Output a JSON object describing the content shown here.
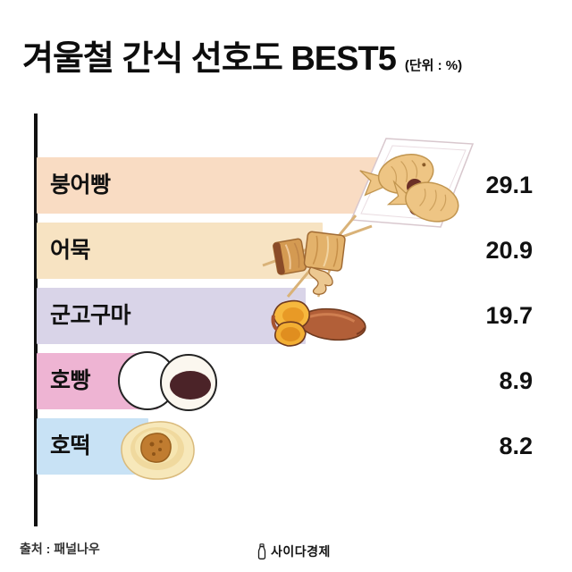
{
  "title": {
    "text": "겨울철 간식 선호도 BEST5",
    "unit": "(단위 : %)"
  },
  "chart_data": {
    "type": "bar",
    "orientation": "horizontal",
    "title": "겨울철 간식 선호도 BEST5",
    "unit": "%",
    "categories": [
      "붕어빵",
      "어묵",
      "군고구마",
      "호빵",
      "호떡"
    ],
    "values": [
      29.1,
      20.9,
      19.7,
      8.9,
      8.2
    ],
    "bar_colors": [
      "#f9dcc3",
      "#f7e3c2",
      "#d9d4e8",
      "#eeb4d3",
      "#c8e2f5"
    ],
    "icons": [
      "bungeoppang-fish-bread-icon",
      "eomuk-fishcake-skewer-icon",
      "roasted-sweet-potato-icon",
      "hoppang-steamed-bun-icon",
      "hotteok-pancake-icon"
    ],
    "value_labels": [
      "29.1",
      "20.9",
      "19.7",
      "8.9",
      "8.2"
    ],
    "grid": false,
    "legend": false
  },
  "footer": {
    "source": "출처 : 패널나우",
    "logo": "사이다경제"
  }
}
